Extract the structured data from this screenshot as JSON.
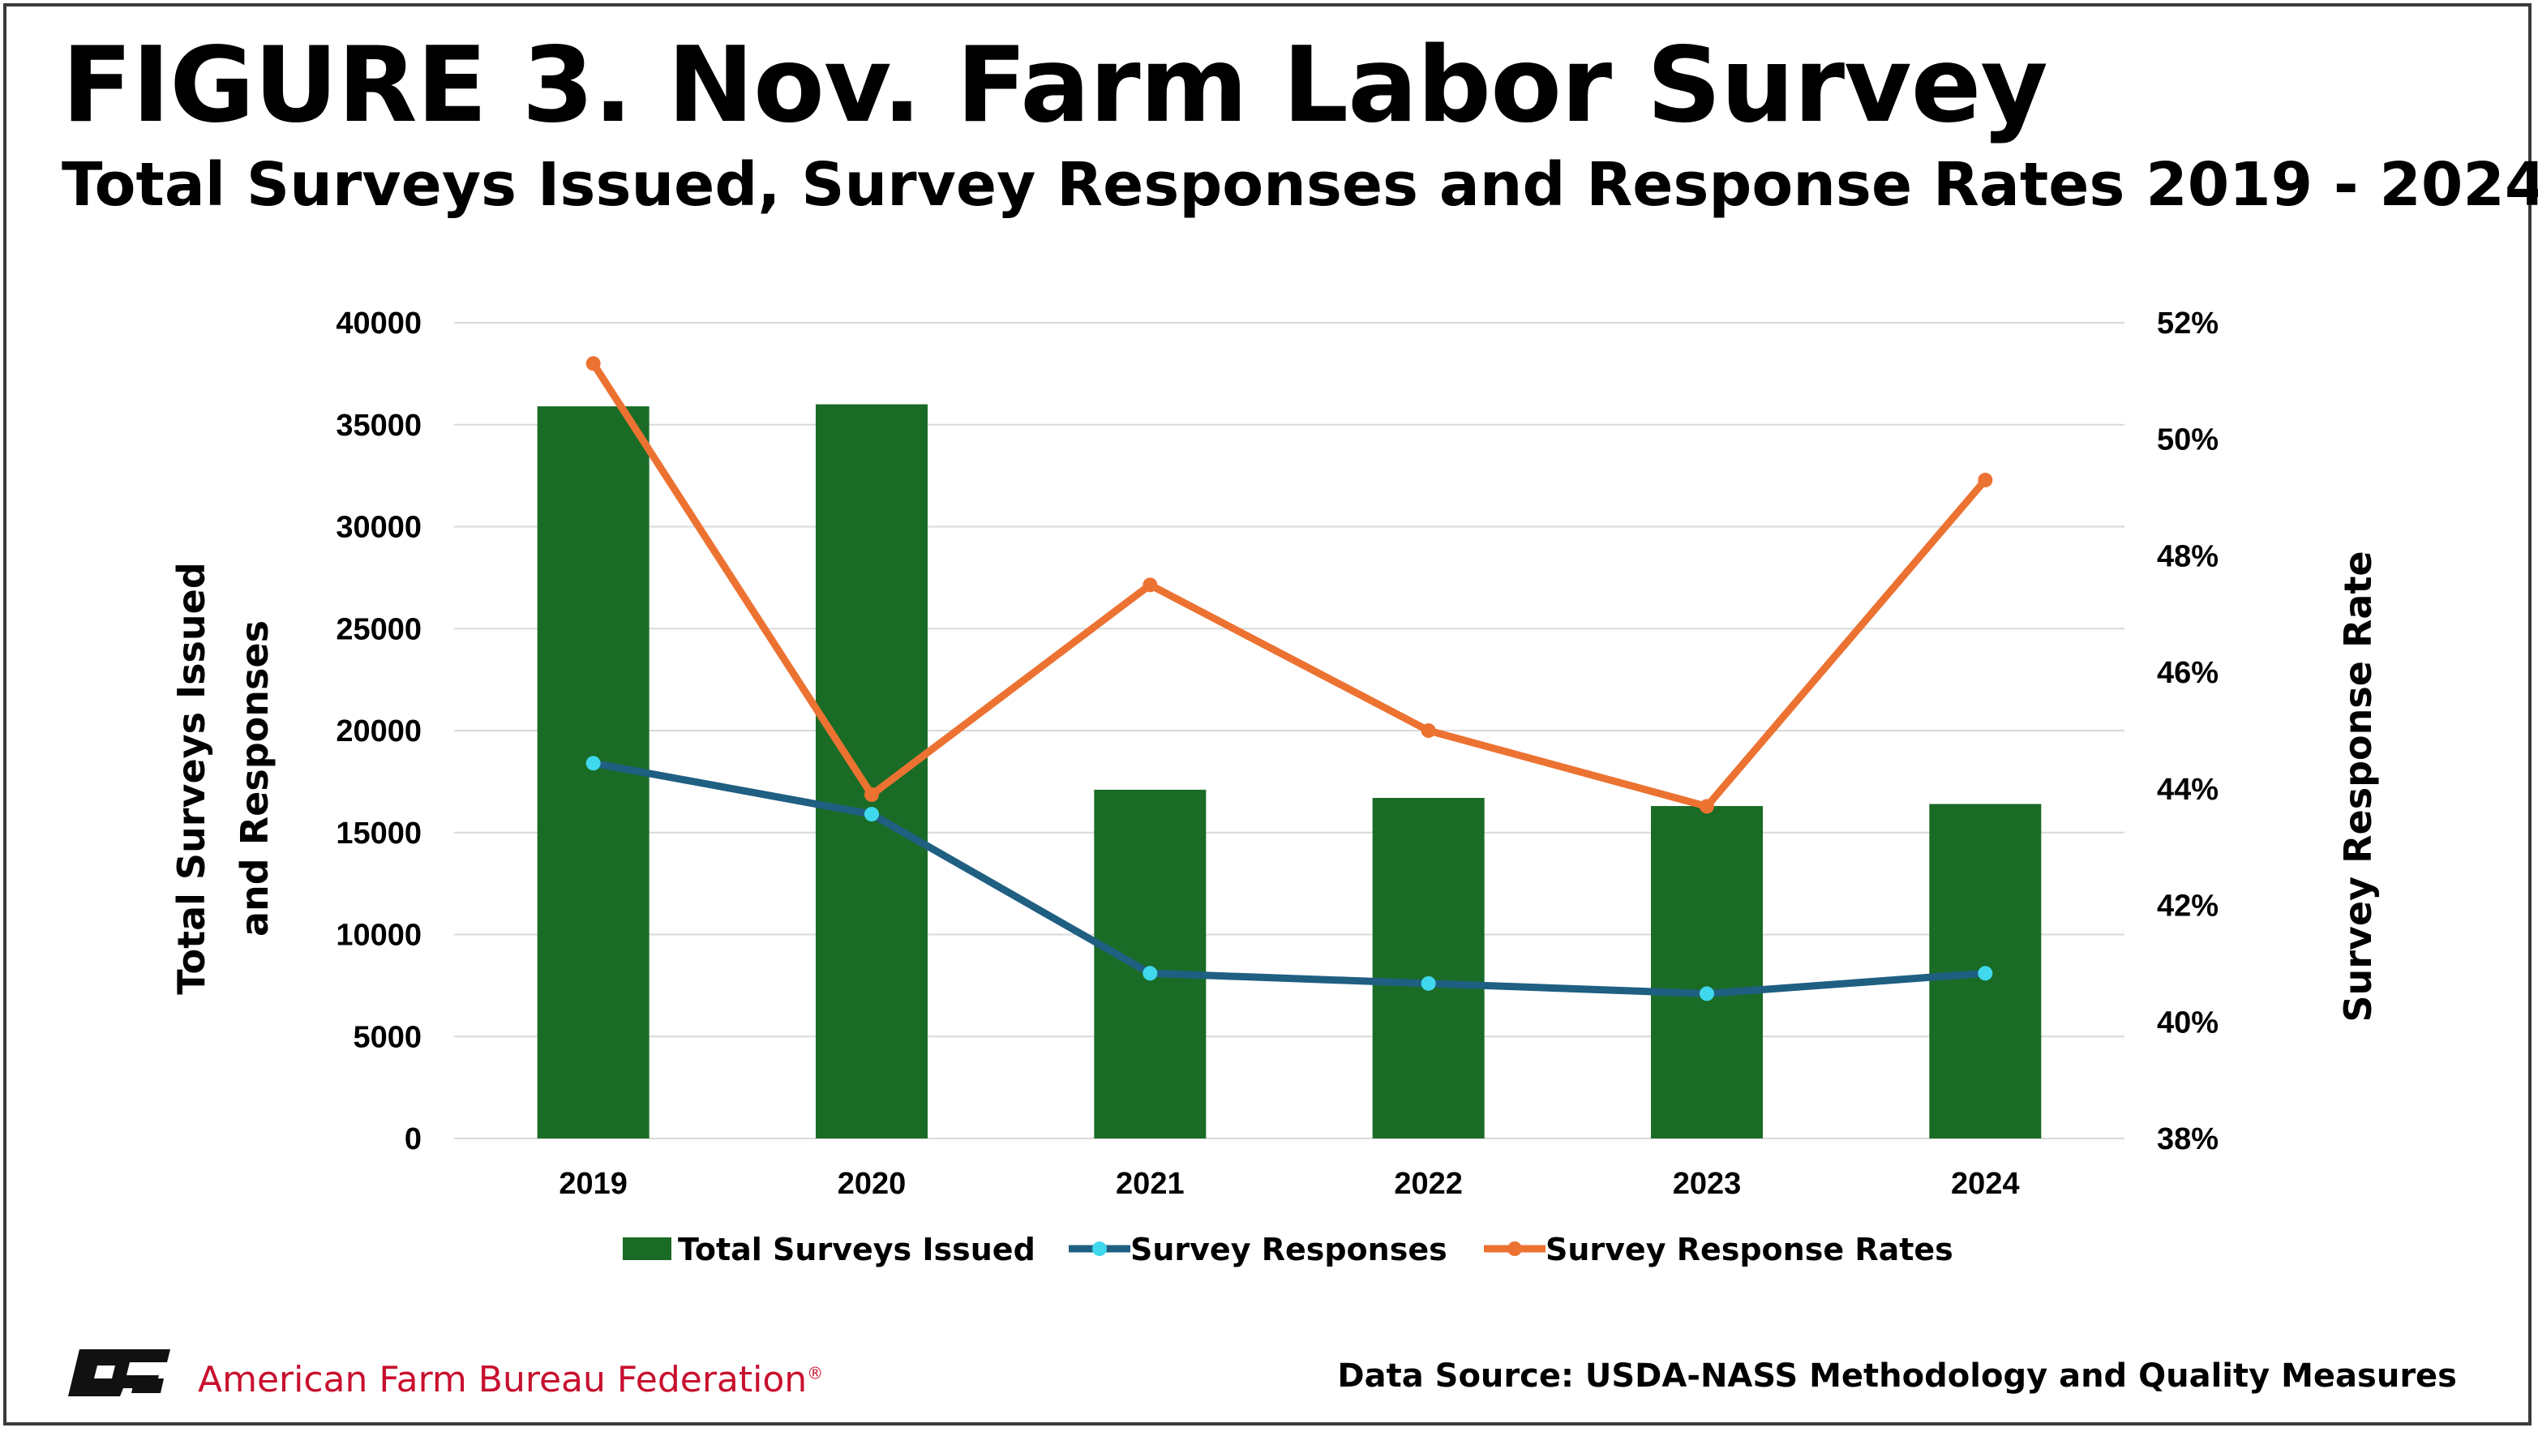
{
  "title": "FIGURE 3. Nov. Farm Labor Survey",
  "subtitle": "Total Surveys Issued, Survey Responses and Response Rates 2019 - 2024",
  "footer": {
    "organization": "American Farm Bureau Federation",
    "registered_mark": "®",
    "logo_icon": "afbf-logo-icon",
    "source": "Data Source:  USDA-NASS Methodology and Quality Measures"
  },
  "colors": {
    "bar": "#1a6b26",
    "responses_line": "#1f5f82",
    "responses_marker": "#40d8ec",
    "rates_line": "#ec7232",
    "grid": "#d9d9d9",
    "org_red": "#c8102e"
  },
  "chart_data": {
    "type": "bar",
    "categories": [
      "2019",
      "2020",
      "2021",
      "2022",
      "2023",
      "2024"
    ],
    "ylabel": "Total Surveys Issued and Responses",
    "ylabel_lines": [
      "Total Surveys Issued",
      "and  Responses"
    ],
    "y2label": "Survey Response Rate",
    "ylim": [
      0,
      40000
    ],
    "y_ticks": [
      0,
      5000,
      10000,
      15000,
      20000,
      25000,
      30000,
      35000,
      40000
    ],
    "y_tick_labels": [
      "0",
      "5000",
      "10000",
      "15000",
      "20000",
      "25000",
      "30000",
      "35000",
      "40000"
    ],
    "y2lim": [
      38,
      52
    ],
    "y2_ticks": [
      38,
      40,
      42,
      44,
      46,
      48,
      50,
      52
    ],
    "y2_tick_labels": [
      "38%",
      "40%",
      "42%",
      "44%",
      "46%",
      "48%",
      "50%",
      "52%"
    ],
    "grid": true,
    "legend_position": "bottom",
    "series": [
      {
        "name": "Total Surveys Issued",
        "type": "bar",
        "axis": "left",
        "values": [
          35900,
          36000,
          17100,
          16700,
          16300,
          16400
        ]
      },
      {
        "name": "Survey Responses",
        "type": "line",
        "axis": "left",
        "marker": true,
        "values": [
          18400,
          15900,
          8100,
          7600,
          7100,
          8100
        ]
      },
      {
        "name": "Survey Response Rates",
        "type": "line",
        "axis": "right",
        "marker": true,
        "values": [
          51.3,
          43.9,
          47.5,
          45.0,
          43.7,
          49.3
        ]
      }
    ]
  }
}
